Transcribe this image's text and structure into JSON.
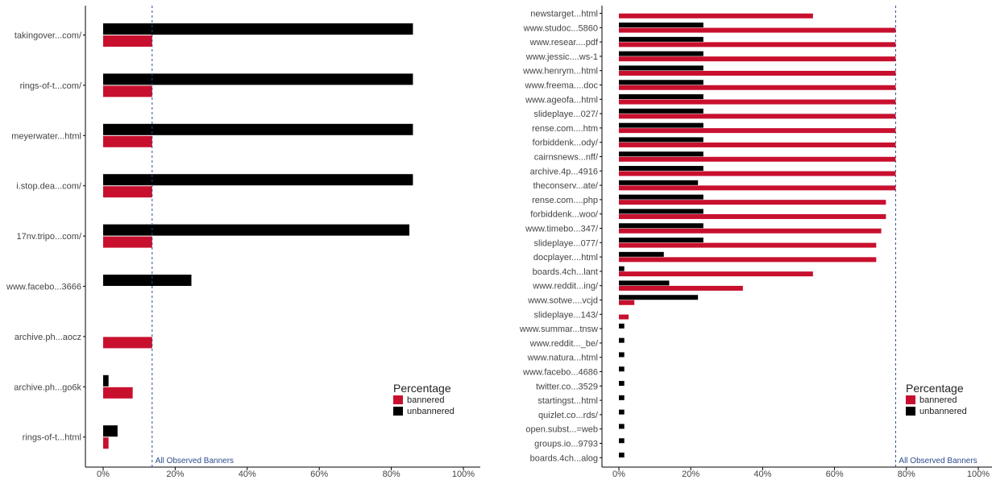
{
  "colors": {
    "bannered": "#C8102E",
    "unbannered": "#000000",
    "reference_line": "#2C4C8C"
  },
  "chart_data": [
    {
      "type": "bar",
      "orientation": "horizontal",
      "categories": [
        "takingover...com/",
        "rings-of-t...com/",
        "meyerwater...html",
        "i.stop.dea...com/",
        "17nv.tripo...com/",
        "www.facebo...3666",
        "archive.ph...aocz",
        "archive.ph...go6k",
        "rings-of-t...html"
      ],
      "series": [
        {
          "name": "unbannered",
          "values": [
            86,
            86,
            86,
            86,
            85,
            24.5,
            null,
            1.5,
            4
          ]
        },
        {
          "name": "bannered",
          "values": [
            13.6,
            13.6,
            13.6,
            13.6,
            13.6,
            null,
            13.6,
            8.2,
            1.5
          ]
        }
      ],
      "xlim": [
        -5,
        105
      ],
      "xticks": [
        0,
        20,
        40,
        60,
        80,
        100
      ],
      "xtick_labels": [
        "0%",
        "20%",
        "40%",
        "60%",
        "80%",
        "100%"
      ],
      "reference_line": {
        "value": 13.6,
        "label": "All Observed Banners"
      },
      "legend": {
        "title": "Percentage",
        "entries": [
          "bannered",
          "unbannered"
        ],
        "position": "right-bottom"
      },
      "grid": false
    },
    {
      "type": "bar",
      "orientation": "horizontal",
      "categories": [
        "newstarget...html",
        "www.studoc...5860",
        "www.resear....pdf",
        "www.jessic....ws-1",
        "www.henrym...html",
        "www.freema....doc",
        "www.ageofa...html",
        "slideplaye...027/",
        "rense.com....htm",
        "forbiddenk...ody/",
        "cairnsnews...nff/",
        "archive.4p...4916",
        "theconserv...ate/",
        "rense.com....php",
        "forbiddenk...woo/",
        "www.timebo...347/",
        "slideplaye...077/",
        "docplayer....html",
        "boards.4ch...lant",
        "www.reddit...ing/",
        "www.sotwe....vcjd",
        "slideplaye...143/",
        "www.summar...tnsw",
        "www.reddit..._be/",
        "www.natura...html",
        "www.facebo...4686",
        "twitter.co...3529",
        "startingst...html",
        "quizlet.co...rds/",
        "open.subst...=web",
        "groups.io...9793",
        "boards.4ch...alog"
      ],
      "series": [
        {
          "name": "unbannered",
          "values": [
            null,
            23.5,
            23.5,
            23.5,
            23.5,
            23.5,
            23.5,
            23.5,
            23.5,
            23.5,
            23.5,
            23.5,
            22,
            23.5,
            23.5,
            23.5,
            23.5,
            12.5,
            1.5,
            14,
            22,
            null,
            1.5,
            1.5,
            1.5,
            1.5,
            1.5,
            1.5,
            1.5,
            1.5,
            1.5,
            1.5
          ]
        },
        {
          "name": "bannered",
          "values": [
            54,
            77,
            77,
            77,
            77,
            77,
            77,
            77,
            77,
            77,
            77,
            77,
            77,
            74.3,
            74.3,
            73,
            71.6,
            71.6,
            54,
            34.5,
            4.3,
            2.7,
            null,
            null,
            null,
            null,
            null,
            null,
            null,
            null,
            null,
            null
          ]
        }
      ],
      "xlim": [
        -5,
        105
      ],
      "xticks": [
        0,
        20,
        40,
        60,
        80,
        100
      ],
      "xtick_labels": [
        "0%",
        "20%",
        "40%",
        "60%",
        "80%",
        "100%"
      ],
      "reference_line": {
        "value": 77,
        "label": "All Observed Banners"
      },
      "legend": {
        "title": "Percentage",
        "entries": [
          "bannered",
          "unbannered"
        ],
        "position": "right-bottom"
      },
      "grid": false
    }
  ]
}
